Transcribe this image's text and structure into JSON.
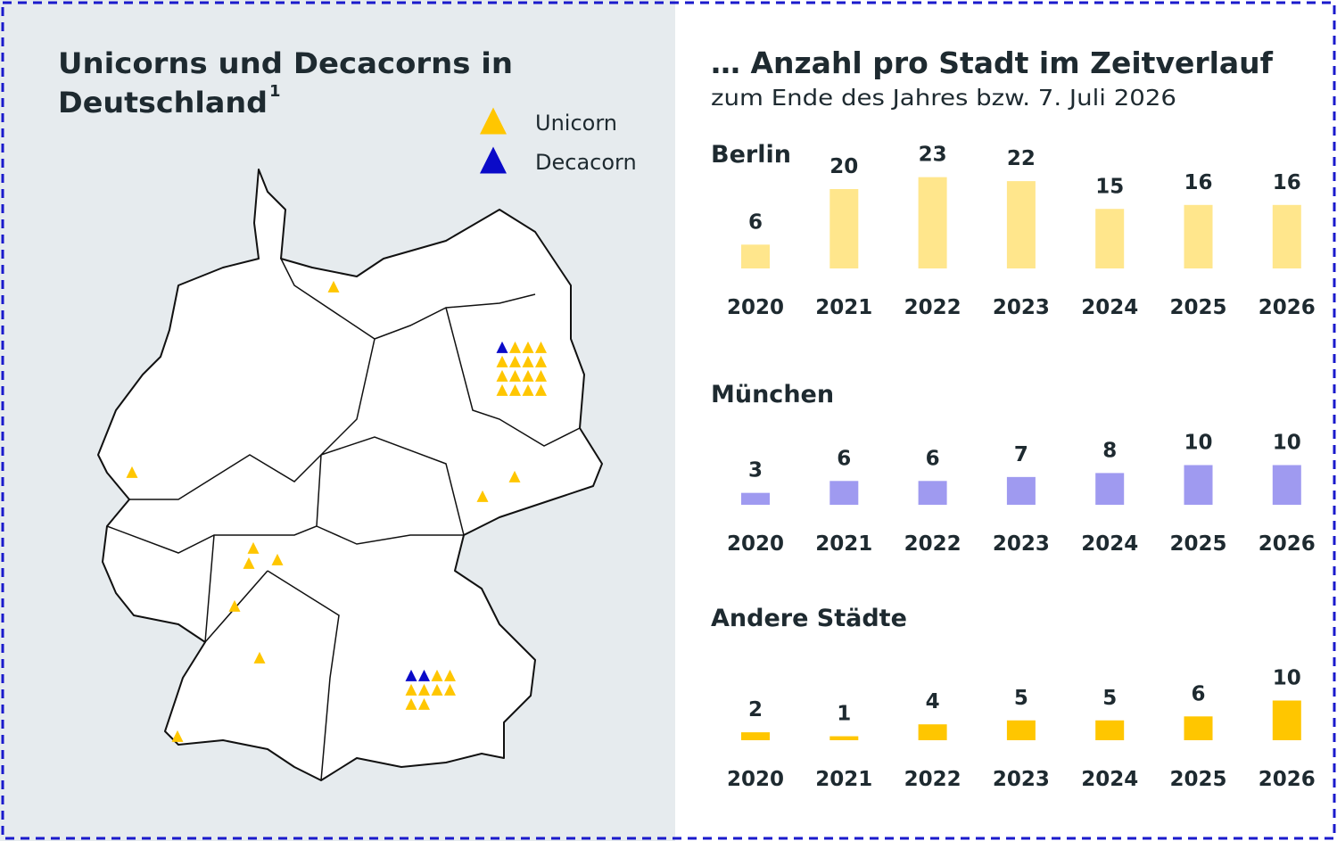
{
  "map": {
    "title_lines": [
      "Unicorns und Decacorns in",
      "Deutschland"
    ],
    "footnote": "1",
    "legend": [
      {
        "name": "Unicorn",
        "color": "#ffc600"
      },
      {
        "name": "Decacorn",
        "color": "#0a0ac8"
      }
    ]
  },
  "header": {
    "title": "… Anzahl pro Stadt im Zeitverlauf",
    "subtitle": "zum Ende des Jahres bzw. 7. Juli 2026"
  },
  "chart_data": [
    {
      "type": "bar",
      "title": "Berlin",
      "categories": [
        "2020",
        "2021",
        "2022",
        "2023",
        "2024",
        "2025",
        "2026"
      ],
      "values": [
        6,
        20,
        23,
        22,
        15,
        16,
        16
      ],
      "color": "#ffe68c"
    },
    {
      "type": "bar",
      "title": "München",
      "categories": [
        "2020",
        "2021",
        "2022",
        "2023",
        "2024",
        "2025",
        "2026"
      ],
      "values": [
        3,
        6,
        6,
        7,
        8,
        10,
        10
      ],
      "color": "#9f9af0"
    },
    {
      "type": "bar",
      "title": "Andere Städte",
      "categories": [
        "2020",
        "2021",
        "2022",
        "2023",
        "2024",
        "2025",
        "2026"
      ],
      "values": [
        2,
        1,
        4,
        5,
        5,
        6,
        10
      ],
      "color": "#ffc600"
    }
  ]
}
